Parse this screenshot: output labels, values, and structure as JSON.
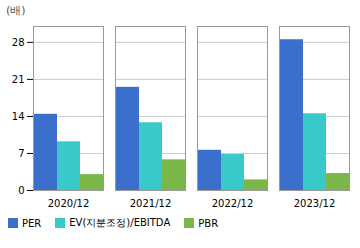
{
  "chart_data": {
    "type": "bar",
    "categories": [
      "2020/12",
      "2021/12",
      "2022/12",
      "2023/12"
    ],
    "series": [
      {
        "name": "PER",
        "color": "#3a6fcc",
        "values": [
          14.4,
          19.5,
          7.6,
          28.5
        ]
      },
      {
        "name": "EV(지분조정)/EBITDA",
        "color": "#3ac9c9",
        "values": [
          9.2,
          12.8,
          6.8,
          14.5
        ]
      },
      {
        "name": "PBR",
        "color": "#7ab648",
        "values": [
          3.0,
          5.8,
          2.0,
          3.2
        ]
      }
    ],
    "ylabel": "(배)",
    "ylim": [
      0,
      31
    ],
    "yticks": [
      0,
      7,
      14,
      21,
      28
    ],
    "grid": true,
    "legend": "bottom"
  }
}
